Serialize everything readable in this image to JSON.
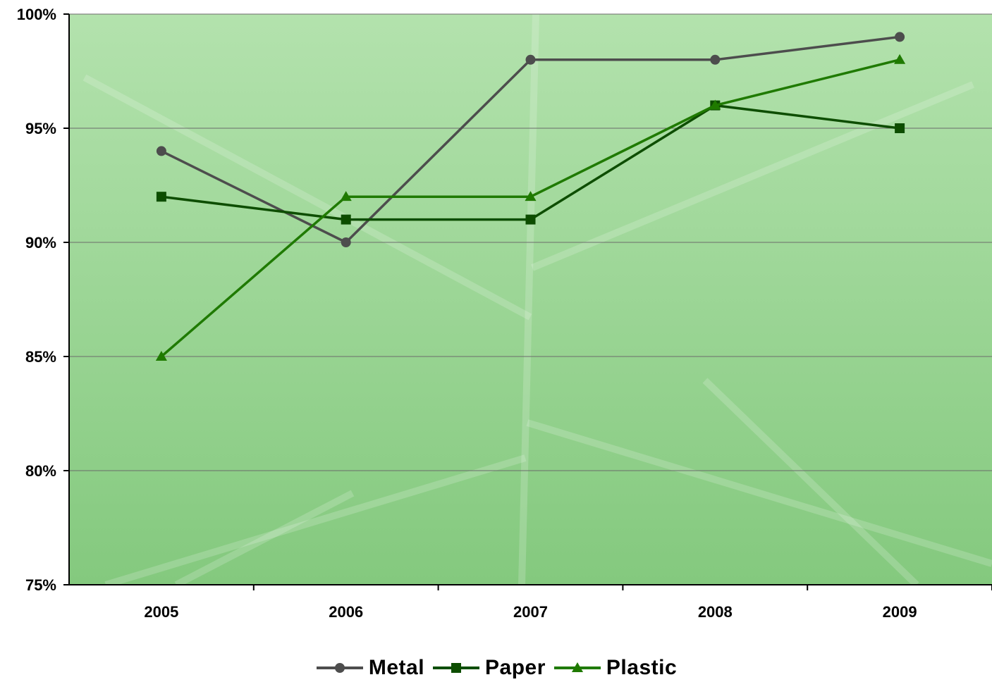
{
  "chart_data": {
    "type": "line",
    "categories": [
      "2005",
      "2006",
      "2007",
      "2008",
      "2009"
    ],
    "series": [
      {
        "name": "Metal",
        "values": [
          94,
          90,
          98,
          98,
          99
        ],
        "color": "#4d4d4d",
        "marker": "circle"
      },
      {
        "name": "Paper",
        "values": [
          92,
          91,
          91,
          96,
          95
        ],
        "color": "#0d4d00",
        "marker": "square"
      },
      {
        "name": "Plastic",
        "values": [
          85,
          92,
          92,
          96,
          98
        ],
        "color": "#1f7a00",
        "marker": "triangle"
      }
    ],
    "ylim": [
      75,
      100
    ],
    "yticks": [
      "75%",
      "80%",
      "85%",
      "90%",
      "95%",
      "100%"
    ],
    "grid": true,
    "legend_position": "bottom",
    "plot_background": "#9fd49a",
    "title": "",
    "xlabel": "",
    "ylabel": ""
  }
}
